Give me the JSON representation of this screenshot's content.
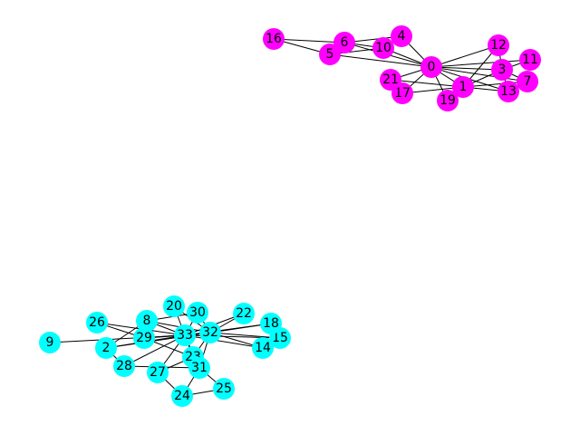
{
  "colors": {
    "group_a": "#ff00ff",
    "group_b": "#00ffff",
    "edge": "#000000",
    "label": "#000000",
    "background": "#ffffff"
  },
  "nodes": [
    {
      "id": "0",
      "group": "a"
    },
    {
      "id": "1",
      "group": "a"
    },
    {
      "id": "3",
      "group": "a"
    },
    {
      "id": "4",
      "group": "a"
    },
    {
      "id": "5",
      "group": "a"
    },
    {
      "id": "6",
      "group": "a"
    },
    {
      "id": "7",
      "group": "a"
    },
    {
      "id": "10",
      "group": "a"
    },
    {
      "id": "11",
      "group": "a"
    },
    {
      "id": "12",
      "group": "a"
    },
    {
      "id": "13",
      "group": "a"
    },
    {
      "id": "16",
      "group": "a"
    },
    {
      "id": "17",
      "group": "a"
    },
    {
      "id": "19",
      "group": "a"
    },
    {
      "id": "21",
      "group": "a"
    },
    {
      "id": "2",
      "group": "b"
    },
    {
      "id": "8",
      "group": "b"
    },
    {
      "id": "9",
      "group": "b"
    },
    {
      "id": "14",
      "group": "b"
    },
    {
      "id": "15",
      "group": "b"
    },
    {
      "id": "18",
      "group": "b"
    },
    {
      "id": "20",
      "group": "b"
    },
    {
      "id": "22",
      "group": "b"
    },
    {
      "id": "23",
      "group": "b"
    },
    {
      "id": "24",
      "group": "b"
    },
    {
      "id": "25",
      "group": "b"
    },
    {
      "id": "26",
      "group": "b"
    },
    {
      "id": "27",
      "group": "b"
    },
    {
      "id": "28",
      "group": "b"
    },
    {
      "id": "29",
      "group": "b"
    },
    {
      "id": "30",
      "group": "b"
    },
    {
      "id": "31",
      "group": "b"
    },
    {
      "id": "32",
      "group": "b"
    },
    {
      "id": "33",
      "group": "b"
    }
  ],
  "edges": [
    [
      "16",
      "5"
    ],
    [
      "16",
      "6"
    ],
    [
      "6",
      "5"
    ],
    [
      "6",
      "10"
    ],
    [
      "6",
      "4"
    ],
    [
      "6",
      "0"
    ],
    [
      "5",
      "0"
    ],
    [
      "5",
      "10"
    ],
    [
      "4",
      "10"
    ],
    [
      "4",
      "0"
    ],
    [
      "10",
      "0"
    ],
    [
      "0",
      "12"
    ],
    [
      "0",
      "11"
    ],
    [
      "0",
      "3"
    ],
    [
      "0",
      "7"
    ],
    [
      "0",
      "13"
    ],
    [
      "0",
      "1"
    ],
    [
      "0",
      "21"
    ],
    [
      "0",
      "17"
    ],
    [
      "0",
      "19"
    ],
    [
      "1",
      "17"
    ],
    [
      "1",
      "21"
    ],
    [
      "1",
      "19"
    ],
    [
      "1",
      "3"
    ],
    [
      "1",
      "7"
    ],
    [
      "1",
      "13"
    ],
    [
      "1",
      "12"
    ],
    [
      "3",
      "7"
    ],
    [
      "3",
      "13"
    ],
    [
      "3",
      "12"
    ],
    [
      "3",
      "11"
    ],
    [
      "13",
      "7"
    ],
    [
      "17",
      "21"
    ],
    [
      "9",
      "33"
    ],
    [
      "2",
      "28"
    ],
    [
      "2",
      "8"
    ],
    [
      "2",
      "33"
    ],
    [
      "2",
      "32"
    ],
    [
      "26",
      "29"
    ],
    [
      "26",
      "33"
    ],
    [
      "8",
      "30"
    ],
    [
      "8",
      "32"
    ],
    [
      "8",
      "33"
    ],
    [
      "29",
      "32"
    ],
    [
      "29",
      "33"
    ],
    [
      "29",
      "23"
    ],
    [
      "20",
      "33"
    ],
    [
      "20",
      "32"
    ],
    [
      "30",
      "33"
    ],
    [
      "30",
      "32"
    ],
    [
      "28",
      "33"
    ],
    [
      "28",
      "31"
    ],
    [
      "27",
      "33"
    ],
    [
      "27",
      "23"
    ],
    [
      "27",
      "24"
    ],
    [
      "24",
      "31"
    ],
    [
      "24",
      "25"
    ],
    [
      "25",
      "31"
    ],
    [
      "23",
      "33"
    ],
    [
      "23",
      "32"
    ],
    [
      "23",
      "31"
    ],
    [
      "31",
      "32"
    ],
    [
      "31",
      "33"
    ],
    [
      "33",
      "32"
    ],
    [
      "22",
      "33"
    ],
    [
      "22",
      "32"
    ],
    [
      "18",
      "33"
    ],
    [
      "18",
      "32"
    ],
    [
      "15",
      "33"
    ],
    [
      "15",
      "32"
    ],
    [
      "14",
      "33"
    ],
    [
      "14",
      "32"
    ]
  ]
}
